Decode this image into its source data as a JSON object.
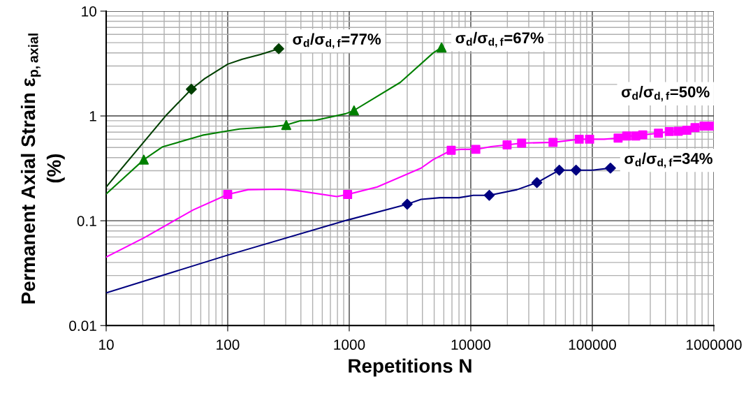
{
  "chart_data": {
    "type": "line",
    "xlabel": "Repetitions N",
    "ylabel": "Permanent Axial Strain ε$_{p,axial}$\n(%)",
    "log": "xy",
    "grid": true,
    "legend": false,
    "xlim": [
      10,
      1000000
    ],
    "xticks": [
      10,
      100,
      1000,
      10000,
      100000,
      1000000
    ],
    "ylim": [
      0.01,
      10
    ],
    "yticks": [
      0.01,
      0.1,
      1,
      10
    ],
    "series": [
      {
        "name": "σ$_{d}$/σ$_{d,f}$=77%",
        "color": "#004000",
        "marker": "none",
        "x": [
          10,
          30.8,
          50.2,
          64.6,
          100,
          132,
          186,
          263
        ],
        "values": [
          0.21,
          1.0,
          1.8,
          2.27,
          3.12,
          3.48,
          3.86,
          4.38
        ]
      },
      {
        "type": "scatter",
        "color": "#004000",
        "marker": "diamond",
        "x": [
          50.2,
          263
        ],
        "values": [
          1.8,
          4.38
        ]
      },
      {
        "name": "σ$_{d}$/σ$_{d,f}$=67%",
        "color": "#008000",
        "marker": "none",
        "x": [
          10,
          20.4,
          28.9,
          62,
          100,
          125,
          233,
          303,
          395,
          528,
          935,
          1095,
          2630,
          4900,
          5750
        ],
        "values": [
          0.18,
          0.383,
          0.505,
          0.655,
          0.72,
          0.75,
          0.79,
          0.82,
          0.9,
          0.91,
          1.05,
          1.13,
          2.09,
          3.99,
          4.5
        ]
      },
      {
        "type": "scatter",
        "color": "#008000",
        "marker": "triangle",
        "x": [
          20.4,
          303,
          1095,
          5750
        ],
        "values": [
          0.383,
          0.82,
          1.13,
          4.5
        ]
      },
      {
        "name": "σ$_{d}$/σ$_{d,f}$=50%",
        "color": "#ff00ff",
        "marker": "none",
        "x": [
          10,
          20.6,
          52,
          100,
          147,
          276,
          360,
          790,
          970,
          1700,
          3900,
          4900,
          6900,
          8300,
          11000,
          14700,
          19900,
          26200,
          47500,
          78000,
          95000,
          125000,
          163000,
          192000,
          228000,
          260000,
          350000,
          430000,
          510000,
          600000,
          700000,
          830000,
          970000,
          1000000
        ],
        "values": [
          0.045,
          0.069,
          0.127,
          0.178,
          0.198,
          0.2,
          0.195,
          0.17,
          0.178,
          0.21,
          0.318,
          0.383,
          0.47,
          0.48,
          0.48,
          0.51,
          0.53,
          0.55,
          0.56,
          0.6,
          0.6,
          0.6,
          0.615,
          0.644,
          0.644,
          0.66,
          0.685,
          0.71,
          0.715,
          0.73,
          0.775,
          0.8,
          0.8,
          0.86
        ]
      },
      {
        "type": "scatter",
        "color": "#ff00ff",
        "marker": "square",
        "x": [
          100,
          970,
          6900,
          11000,
          19900,
          26200,
          47500,
          78000,
          95000,
          163000,
          192000,
          228000,
          260000,
          350000,
          430000,
          510000,
          600000,
          700000,
          830000,
          970000
        ],
        "values": [
          0.178,
          0.178,
          0.47,
          0.48,
          0.53,
          0.55,
          0.56,
          0.6,
          0.6,
          0.615,
          0.644,
          0.644,
          0.66,
          0.685,
          0.71,
          0.715,
          0.73,
          0.775,
          0.8,
          0.8
        ]
      },
      {
        "name": "σ$_{d}$/σ$_{d,f}$=34%",
        "color": "#000080",
        "marker": "none",
        "x": [
          10,
          100,
          980,
          3000,
          3900,
          5600,
          8000,
          10500,
          14200,
          24000,
          35000,
          53500,
          73500,
          100000,
          141000
        ],
        "values": [
          0.0205,
          0.047,
          0.102,
          0.144,
          0.16,
          0.166,
          0.166,
          0.175,
          0.175,
          0.198,
          0.231,
          0.304,
          0.304,
          0.304,
          0.318
        ]
      },
      {
        "type": "scatter",
        "color": "#000080",
        "marker": "diamond",
        "x": [
          3000,
          14200,
          35000,
          53500,
          73500,
          141000
        ],
        "values": [
          0.144,
          0.175,
          0.231,
          0.304,
          0.304,
          0.318
        ]
      }
    ]
  }
}
